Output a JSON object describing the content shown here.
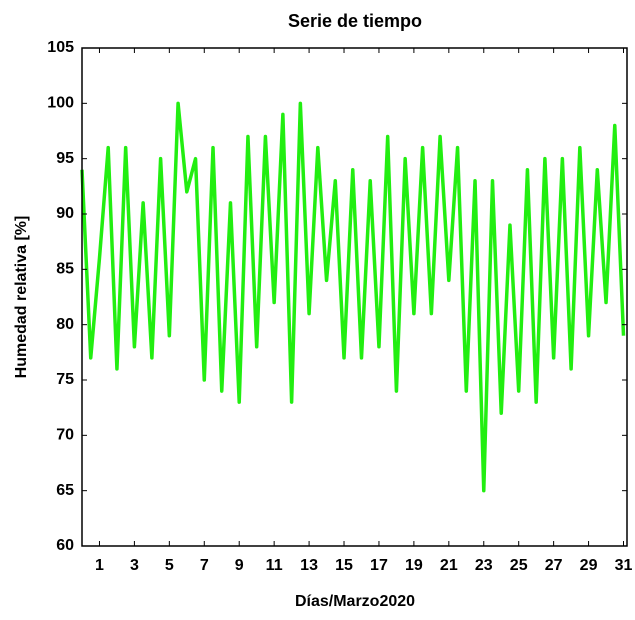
{
  "chart_data": {
    "type": "line",
    "title": "Serie de tiempo",
    "x_label": "Días/Marzo2020",
    "y_label": "Humedad relativa [%]",
    "x": [
      0,
      0.5,
      1,
      1.5,
      2,
      2.5,
      3,
      3.5,
      4,
      4.5,
      5,
      5.5,
      6,
      6.5,
      7,
      7.5,
      8,
      8.5,
      9,
      9.5,
      10,
      10.5,
      11,
      11.5,
      12,
      12.5,
      13,
      13.5,
      14,
      14.5,
      15,
      15.5,
      16,
      16.5,
      17,
      17.5,
      18,
      18.5,
      19,
      19.5,
      20,
      20.5,
      21,
      21.5,
      22,
      22.5,
      23,
      23.5,
      24,
      24.5,
      25,
      25.5,
      26,
      26.5,
      27,
      27.5,
      28,
      28.5,
      29,
      29.5,
      30,
      30.5,
      31
    ],
    "series": [
      {
        "name": "Humedad relativa",
        "color": "#22ee11",
        "values": [
          94,
          77,
          86,
          96,
          76,
          96,
          78,
          91,
          77,
          95,
          79,
          100,
          92,
          95,
          75,
          96,
          74,
          91,
          73,
          97,
          78,
          97,
          82,
          99,
          73,
          100,
          81,
          96,
          84,
          93,
          77,
          94,
          77,
          93,
          78,
          97,
          74,
          95,
          81,
          96,
          81,
          97,
          84,
          96,
          74,
          93,
          65,
          93,
          72,
          89,
          74,
          94,
          73,
          95,
          77,
          95,
          76,
          96,
          79,
          94,
          82,
          98,
          79
        ]
      }
    ],
    "xlim": [
      0,
      31.2
    ],
    "ylim": [
      60,
      105
    ],
    "xticks": [
      1,
      3,
      5,
      7,
      9,
      11,
      13,
      15,
      17,
      19,
      21,
      23,
      25,
      27,
      29,
      31
    ],
    "yticks": [
      60,
      65,
      70,
      75,
      80,
      85,
      90,
      95,
      100,
      105
    ]
  }
}
